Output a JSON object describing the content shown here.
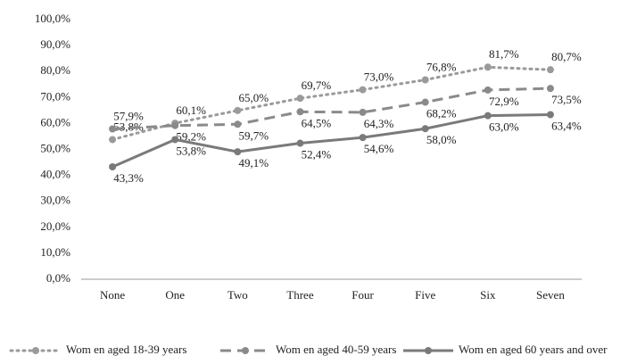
{
  "chart_data": {
    "type": "line",
    "categories": [
      "None",
      "One",
      "Two",
      "Three",
      "Four",
      "Five",
      "Six",
      "Seven"
    ],
    "series": [
      {
        "name": "Wom en aged 18-39 years",
        "color": "#9a9a9a",
        "dash": "dotted",
        "values": [
          53.8,
          60.1,
          65.0,
          69.7,
          73.0,
          76.8,
          81.7,
          80.7
        ],
        "value_labels": [
          "53,8%",
          "60,1%",
          "65,0%",
          "69,7%",
          "73,0%",
          "76,8%",
          "81,7%",
          "80,7%"
        ]
      },
      {
        "name": "Wom en aged 40-59 years",
        "color": "#8a8a8a",
        "dash": "dashed",
        "values": [
          57.9,
          59.2,
          59.7,
          64.5,
          64.3,
          68.2,
          72.9,
          73.5
        ],
        "value_labels": [
          "57,9%",
          "59,2%",
          "59,7%",
          "64,5%",
          "64,3%",
          "68,2%",
          "72,9%",
          "73,5%"
        ]
      },
      {
        "name": "Wom en aged 60 years and over",
        "color": "#7a7a7a",
        "dash": "solid",
        "values": [
          43.3,
          53.8,
          49.1,
          52.4,
          54.6,
          58.0,
          63.0,
          63.4
        ],
        "value_labels": [
          "43,3%",
          "53,8%",
          "49,1%",
          "52,4%",
          "54,6%",
          "58,0%",
          "63,0%",
          "63,4%"
        ]
      }
    ],
    "ylim": [
      0,
      100
    ],
    "yticks": [
      {
        "value": 0,
        "label": "0,0%"
      },
      {
        "value": 10,
        "label": "10,0%"
      },
      {
        "value": 20,
        "label": "20,0%"
      },
      {
        "value": 30,
        "label": "30,0%"
      },
      {
        "value": 40,
        "label": "40,0%"
      },
      {
        "value": 50,
        "label": "50,0%"
      },
      {
        "value": 60,
        "label": "60,0%"
      },
      {
        "value": 70,
        "label": "70,0%"
      },
      {
        "value": 80,
        "label": "80,0%"
      },
      {
        "value": 90,
        "label": "90,0%"
      },
      {
        "value": 100,
        "label": "100,0%"
      }
    ],
    "grid": false,
    "legend": "bottom"
  }
}
